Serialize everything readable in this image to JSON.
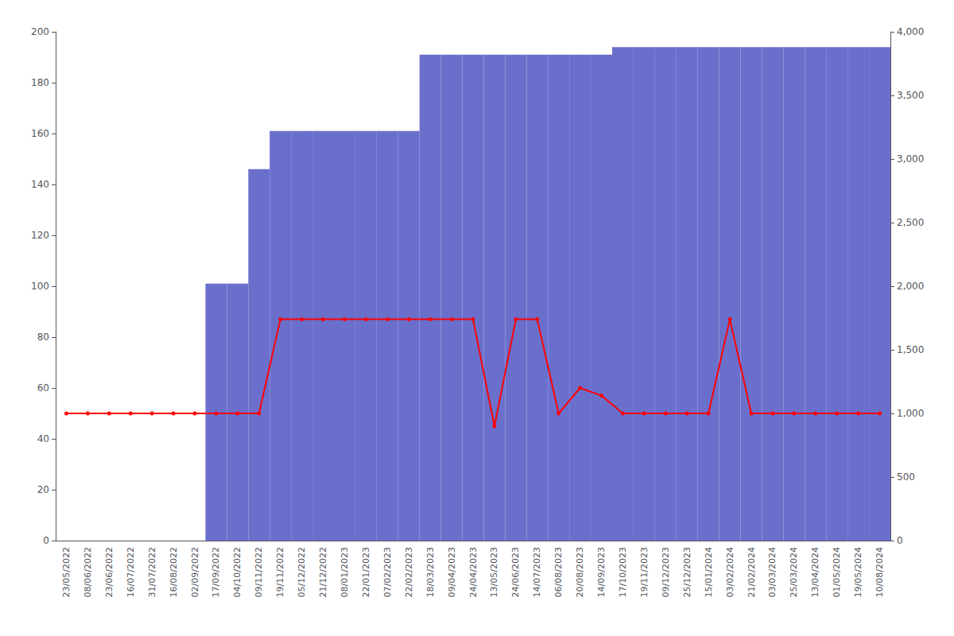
{
  "chart_data": {
    "type": "bar",
    "categories": [
      "23/05/2022",
      "08/06/2022",
      "23/06/2022",
      "16/07/2022",
      "31/07/2022",
      "16/08/2022",
      "02/09/2022",
      "17/09/2022",
      "04/10/2022",
      "09/11/2022",
      "19/11/2022",
      "05/12/2022",
      "21/12/2022",
      "08/01/2023",
      "22/01/2023",
      "07/02/2023",
      "22/02/2023",
      "18/03/2023",
      "09/04/2023",
      "24/04/2023",
      "13/05/2023",
      "24/06/2023",
      "14/07/2023",
      "06/08/2023",
      "20/08/2023",
      "14/09/2023",
      "17/10/2023",
      "19/11/2023",
      "09/12/2023",
      "25/12/2023",
      "15/01/2024",
      "03/02/2024",
      "21/02/2024",
      "03/03/2024",
      "25/03/2024",
      "13/04/2024",
      "01/05/2024",
      "19/05/2024",
      "10/08/2024"
    ],
    "series": [
      {
        "type": "bar",
        "color": "#6b6fcc",
        "values": [
          0,
          0,
          0,
          0,
          0,
          0,
          0,
          101,
          101,
          146,
          161,
          161,
          161,
          161,
          161,
          161,
          161,
          191,
          191,
          191,
          191,
          191,
          191,
          191,
          191,
          191,
          194,
          194,
          194,
          194,
          194,
          194,
          194,
          194,
          194,
          194,
          194,
          194,
          194
        ]
      },
      {
        "type": "line",
        "color": "#ff0000",
        "marker": "circle",
        "values": [
          50,
          50,
          50,
          50,
          50,
          50,
          50,
          50,
          50,
          50,
          87,
          87,
          87,
          87,
          87,
          87,
          87,
          87,
          87,
          87,
          45,
          87,
          87,
          50,
          60,
          57,
          50,
          50,
          50,
          50,
          50,
          87,
          50,
          50,
          50,
          50,
          50,
          50,
          50
        ]
      }
    ],
    "ylim": [
      0,
      200
    ],
    "yticks": [
      0,
      20,
      40,
      60,
      80,
      100,
      120,
      140,
      160,
      180,
      200
    ],
    "y2lim": [
      0,
      4000
    ],
    "y2ticks": [
      0,
      500,
      1000,
      1500,
      2000,
      2500,
      3000,
      3500,
      4000
    ],
    "grid": false
  }
}
